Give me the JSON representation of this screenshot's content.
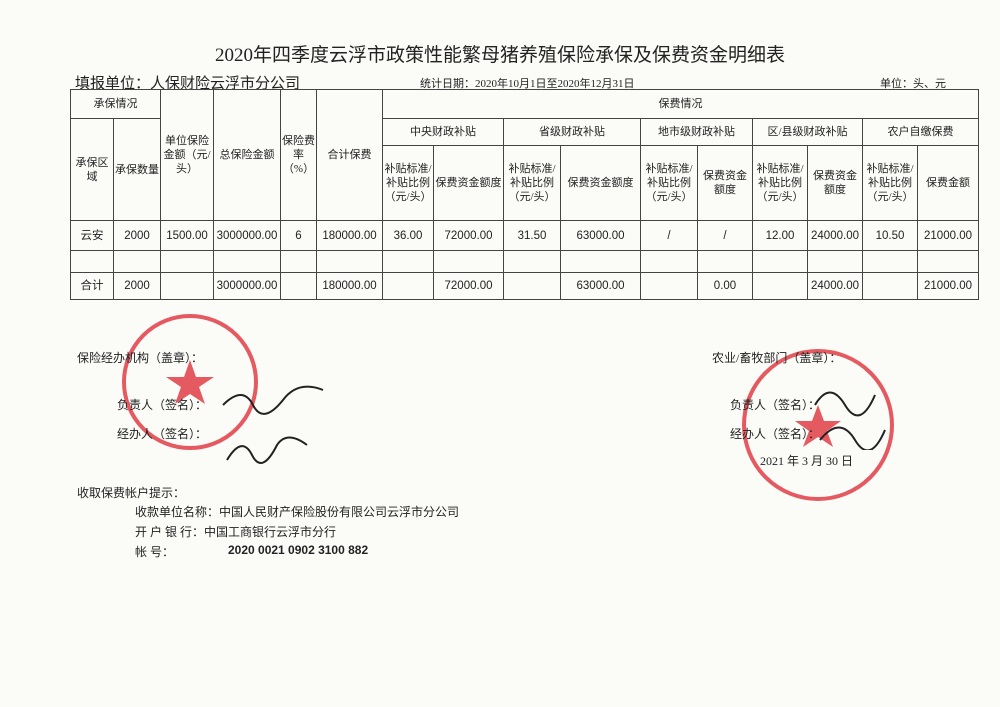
{
  "title": "2020年四季度云浮市政策性能繁母猪养殖保险承保及保费资金明细表",
  "filler": "填报单位：人保财险云浮市分公司",
  "period": "统计日期：2020年10月1日至2020年12月31日",
  "unit": "单位：头、元",
  "headers": {
    "underwriting": "承保情况",
    "premium": "保费情况",
    "region": "承保区域",
    "quantity": "承保数量",
    "unit_amount": "单位保险金额（元/头）",
    "total_amount": "总保险金额",
    "rate": "保险费率（%）",
    "total_premium": "合计保费",
    "central": "中央财政补贴",
    "provincial": "省级财政补贴",
    "city": "地市级财政补贴",
    "county": "区/县级财政补贴",
    "farmer": "农户自缴保费",
    "std_central": "补贴标准/补贴比例（元/头）",
    "amt_central": "保费资金额度",
    "std_provincial": "补贴标准/补贴比例（元/头）",
    "amt_provincial": "保费资金额度",
    "std_city": "补贴标准/补贴比例（元/头）",
    "amt_city": "保费资金额度",
    "std_county": "补贴标准/补贴比例（元/头）",
    "amt_county": "保费资金额度",
    "std_farmer": "补贴标准/补贴比例（元/头）",
    "amt_farmer": "保费金额"
  },
  "rows": [
    [
      "云安",
      "2000",
      "1500.00",
      "3000000.00",
      "6",
      "180000.00",
      "36.00",
      "72000.00",
      "31.50",
      "63000.00",
      "/",
      "/",
      "12.00",
      "24000.00",
      "10.50",
      "21000.00"
    ],
    [
      "",
      "",
      "",
      "",
      "",
      "",
      "",
      "",
      "",
      "",
      "",
      "",
      "",
      "",
      "",
      ""
    ],
    [
      "合计",
      "2000",
      "",
      "3000000.00",
      "",
      "180000.00",
      "",
      "72000.00",
      "",
      "63000.00",
      "",
      "0.00",
      "",
      "24000.00",
      "",
      "21000.00"
    ]
  ],
  "footer": {
    "insurer_org": "保险经办机构（盖章）：",
    "insurer_head": "负责人（签名）：",
    "insurer_handler": "经办人（签名）：",
    "agri_dept": "农业/畜牧部门（盖章）：",
    "agri_head": "负责人（签名）：",
    "agri_handler": "经办人（签名）：",
    "date": "2021 年 3 月 30 日",
    "account_hint": "收取保费帐户提示：",
    "payee": "收款单位名称：中国人民财产保险股份有限公司云浮市分公司",
    "bank": "开 户   银 行：中国工商银行云浮市分行",
    "account": "帐          号：",
    "account_no": "2020 0021 0902 3100 882"
  },
  "colors": {
    "stamp": "#e0323a",
    "ink": "#222222"
  }
}
